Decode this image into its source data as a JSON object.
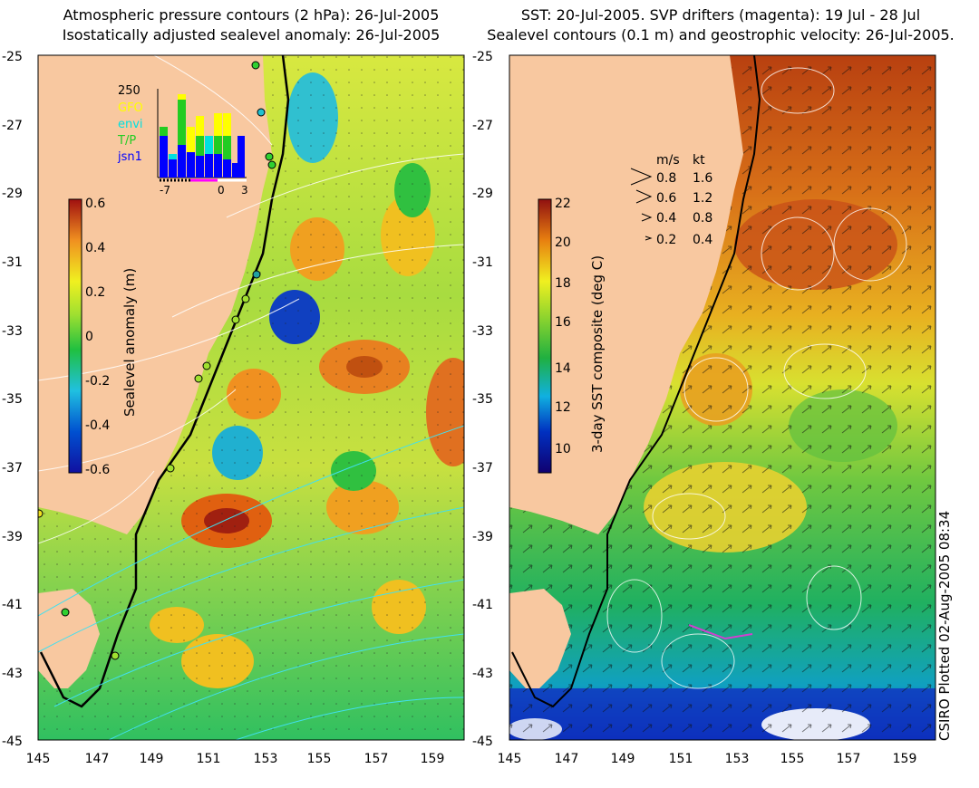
{
  "left_panel": {
    "title_line1": "Atmospheric pressure contours (2 hPa): 26-Jul-2005",
    "title_line2": "Isostatically adjusted sealevel anomaly: 26-Jul-2005",
    "colorbar": {
      "label": "Sealevel anomaly (m)",
      "ticks": [
        "0.6",
        "0.4",
        "0.2",
        "0",
        "-0.2",
        "-0.4",
        "-0.6"
      ]
    },
    "inset": {
      "count_label": "250",
      "legend": [
        {
          "name": "GFO",
          "color": "#ffff00"
        },
        {
          "name": "envi",
          "color": "#00e0e0"
        },
        {
          "name": "T/P",
          "color": "#22cc22"
        },
        {
          "name": "jsn1",
          "color": "#0000ff"
        }
      ],
      "x_ticks": [
        "-7",
        "0",
        "3"
      ]
    }
  },
  "right_panel": {
    "title_line1": "SST: 20-Jul-2005. SVP drifters (magenta): 19 Jul - 28 Jul",
    "title_line2": "Sealevel contours (0.1 m) and geostrophic velocity: 26-Jul-2005.",
    "colorbar": {
      "label": "3-day SST composite (deg C)",
      "ticks": [
        "22",
        "20",
        "18",
        "16",
        "14",
        "12",
        "10"
      ]
    },
    "velocity_key": {
      "header_ms": "m/s",
      "header_kt": "kt",
      "rows": [
        {
          "ms": "0.8",
          "kt": "1.6"
        },
        {
          "ms": "0.6",
          "kt": "1.2"
        },
        {
          "ms": "0.4",
          "kt": "0.8"
        },
        {
          "ms": "0.2",
          "kt": "0.4"
        }
      ]
    }
  },
  "axes": {
    "y_ticks": [
      "-25",
      "-27",
      "-29",
      "-31",
      "-33",
      "-35",
      "-37",
      "-39",
      "-41",
      "-43",
      "-45"
    ],
    "x_ticks": [
      "145",
      "147",
      "149",
      "151",
      "153",
      "155",
      "157",
      "159"
    ]
  },
  "credit": "CSIRO Plotted 02-Aug-2005 08:34",
  "colors": {
    "land": "#f8c8a0",
    "coast_contour": "#000000"
  }
}
